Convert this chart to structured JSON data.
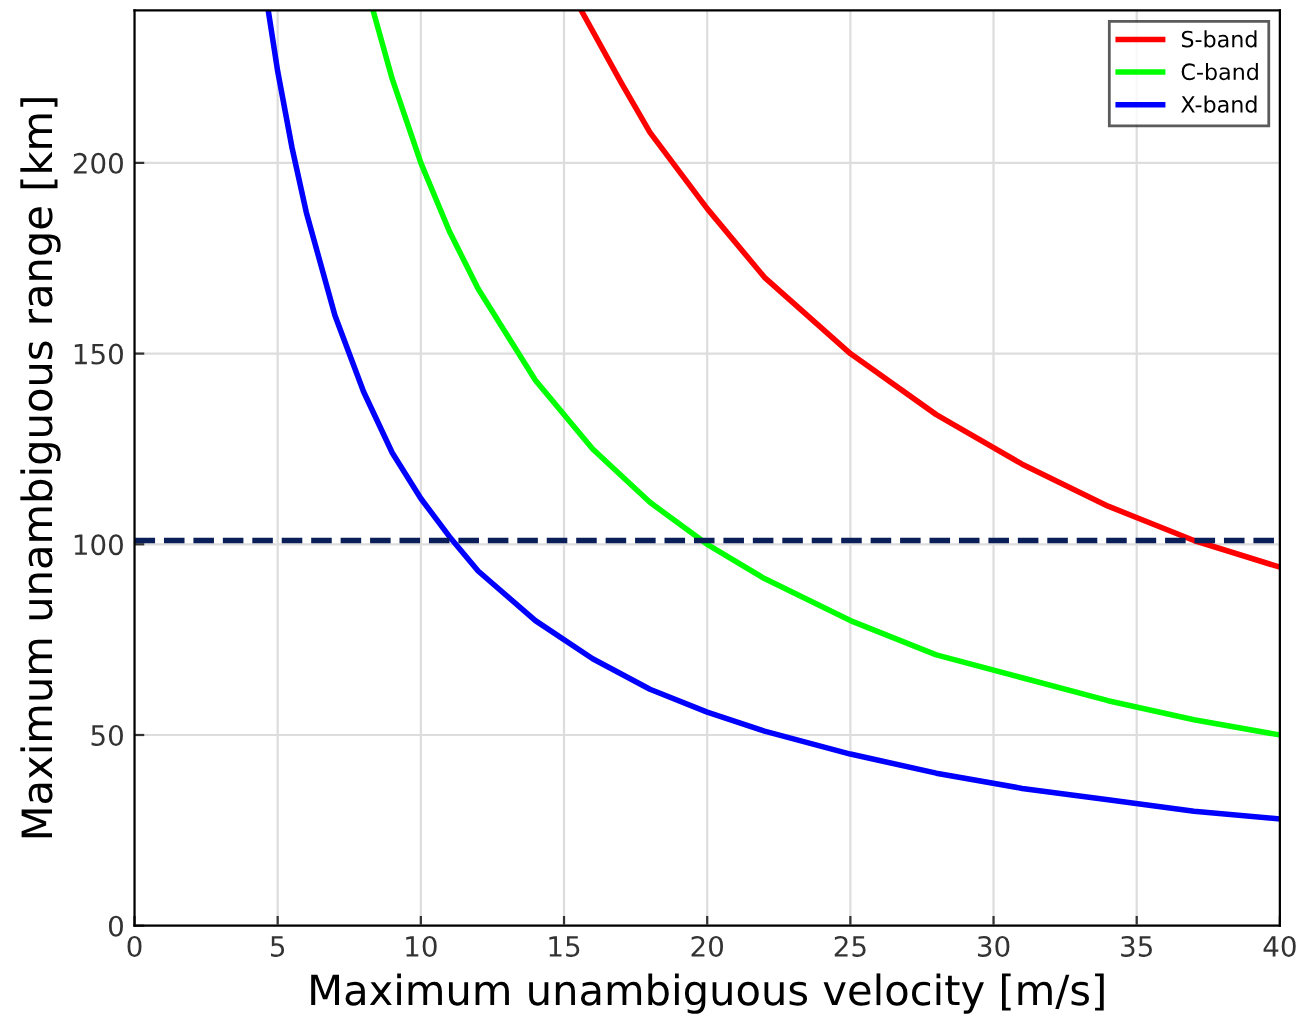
{
  "chart_data": {
    "type": "line",
    "xlabel": "Maximum unambiguous velocity [m/s]",
    "ylabel": "Maximum unambiguous range [km]",
    "xlim": [
      0,
      40
    ],
    "ylim": [
      0,
      240
    ],
    "xticks": [
      0,
      5,
      10,
      15,
      20,
      25,
      30,
      35,
      40
    ],
    "yticks": [
      0,
      50,
      100,
      150,
      200
    ],
    "grid": true,
    "legend": "top right",
    "marker": "none",
    "line_style": "solid",
    "series": [
      {
        "name": "S-band",
        "color": "#ff0000",
        "x": [
          15.6,
          17,
          18,
          20,
          22,
          25,
          28,
          31,
          34,
          37,
          40
        ],
        "values": [
          240,
          221,
          208,
          188,
          170,
          150,
          134,
          121,
          110,
          101,
          94
        ]
      },
      {
        "name": "C-band",
        "color": "#00ff00",
        "x": [
          8.33,
          9,
          10,
          11,
          12,
          14,
          16,
          18,
          20,
          22,
          25,
          28,
          31,
          34,
          37,
          40
        ],
        "values": [
          240,
          222,
          200,
          182,
          167,
          143,
          125,
          111,
          100,
          91,
          80,
          71,
          65,
          59,
          54,
          50
        ]
      },
      {
        "name": "X-band",
        "color": "#0000ff",
        "x": [
          4.67,
          5,
          5.5,
          6,
          7,
          8,
          9,
          10,
          11,
          12,
          14,
          16,
          18,
          20,
          22,
          25,
          28,
          31,
          34,
          37,
          40
        ],
        "values": [
          240,
          224,
          204,
          187,
          160,
          140,
          124,
          112,
          102,
          93,
          80,
          70,
          62,
          56,
          51,
          45,
          40,
          36,
          33,
          30,
          28
        ]
      }
    ],
    "ref_lines": [
      {
        "axis": "y",
        "value": 101,
        "color": "#0a1e5a",
        "line_style": "dashed"
      }
    ]
  }
}
